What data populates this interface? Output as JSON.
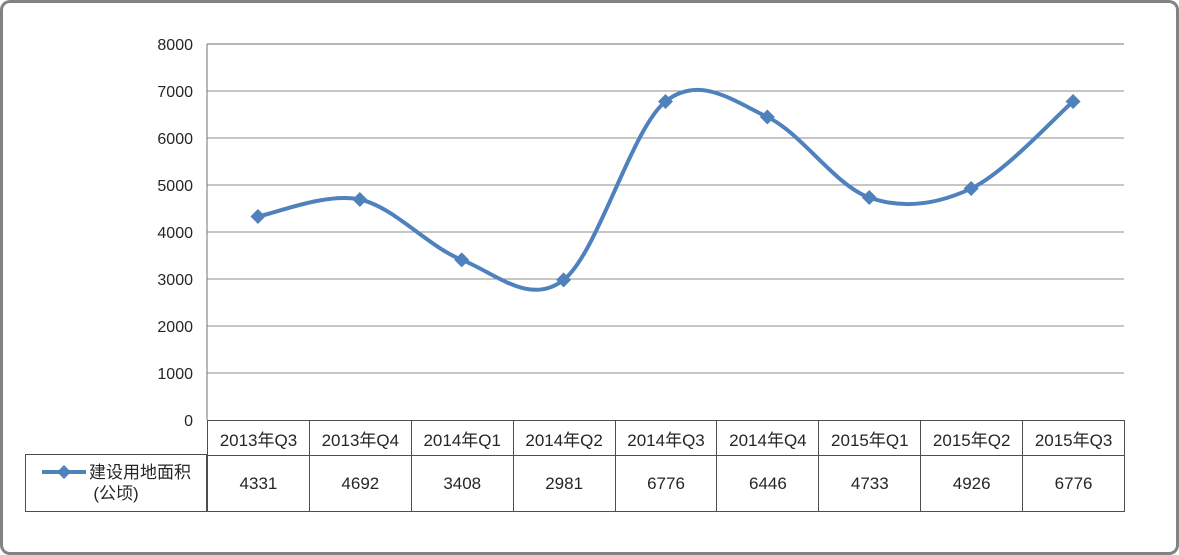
{
  "chart_data": {
    "type": "line",
    "smooth": true,
    "categories": [
      "2013年Q3",
      "2013年Q4",
      "2014年Q1",
      "2014年Q2",
      "2014年Q3",
      "2014年Q4",
      "2015年Q1",
      "2015年Q2",
      "2015年Q3"
    ],
    "series": [
      {
        "name": "建设用地面积(公顷)",
        "values": [
          4331,
          4692,
          3408,
          2981,
          6776,
          6446,
          4733,
          4926,
          6776
        ]
      }
    ],
    "ylim": [
      0,
      8000
    ],
    "y_ticks": [
      8000,
      7000,
      6000,
      5000,
      4000,
      3000,
      2000,
      1000,
      0
    ],
    "grid": true,
    "legend_position": "bottom-left-table",
    "line_color": "#4F81BD",
    "marker": "diamond"
  },
  "legend": {
    "label": "建设用地面积",
    "unit": "(公顷)"
  },
  "colors": {
    "series_blue": "#4F81BD",
    "gridline": "#8e8e8e",
    "axis": "#707070",
    "table_border": "#4d4d4d",
    "frame_border": "#828282",
    "text": "#262626"
  }
}
